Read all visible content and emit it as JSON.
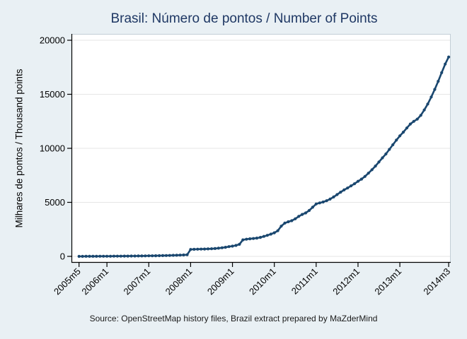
{
  "figure": {
    "title": "Brasil: Número de pontos / Number of Points",
    "caption": "Source: OpenStreetMap history files, Brazil extract prepared by MaZderMind"
  },
  "style": {
    "background": "#e9f0f4",
    "plot_background": "#ffffff",
    "grid_color": "#e6e6e6",
    "axis_color": "#000000",
    "frame_color": "#c3ced6",
    "line_color": "#1a476f",
    "title_color": "#1f3864",
    "text_color": "#000000"
  },
  "chart_data": {
    "type": "line",
    "title": "Brasil: Número de pontos / Number of Points",
    "xlabel": "",
    "ylabel": "Milhares de pontos / Thousand points",
    "x_start": "2005m5",
    "x_end": "2014m3",
    "x_interval": "monthly",
    "ylim": [
      0,
      20000
    ],
    "yticks": [
      0,
      5000,
      10000,
      15000,
      20000
    ],
    "xticks": [
      {
        "label": "2005m5",
        "month_index": 0
      },
      {
        "label": "2006m1",
        "month_index": 8
      },
      {
        "label": "2007m1",
        "month_index": 20
      },
      {
        "label": "2008m1",
        "month_index": 32
      },
      {
        "label": "2009m1",
        "month_index": 44
      },
      {
        "label": "2010m1",
        "month_index": 56
      },
      {
        "label": "2011m1",
        "month_index": 68
      },
      {
        "label": "2012m1",
        "month_index": 80
      },
      {
        "label": "2013m1",
        "month_index": 92
      },
      {
        "label": "2014m3",
        "month_index": 106
      }
    ],
    "grid": "horizontal",
    "legend_position": "none",
    "series": [
      {
        "name": "Milhares de pontos / Thousand points",
        "color": "#1a476f",
        "values": [
          2,
          3,
          4,
          5,
          7,
          8,
          10,
          12,
          14,
          16,
          18,
          20,
          22,
          25,
          28,
          31,
          34,
          38,
          42,
          46,
          50,
          55,
          60,
          66,
          72,
          79,
          87,
          95,
          104,
          115,
          130,
          150,
          640,
          655,
          665,
          672,
          680,
          690,
          705,
          725,
          755,
          795,
          845,
          900,
          950,
          1010,
          1120,
          1530,
          1590,
          1625,
          1655,
          1690,
          1760,
          1850,
          1950,
          2060,
          2180,
          2370,
          2800,
          3080,
          3200,
          3300,
          3480,
          3700,
          3880,
          4020,
          4250,
          4550,
          4850,
          4950,
          5030,
          5150,
          5300,
          5500,
          5720,
          5940,
          6150,
          6330,
          6520,
          6720,
          6950,
          7150,
          7400,
          7700,
          8020,
          8360,
          8730,
          9120,
          9480,
          9900,
          10330,
          10760,
          11150,
          11500,
          11880,
          12250,
          12500,
          12700,
          13050,
          13550,
          14100,
          14750,
          15450,
          16200,
          17000,
          17800,
          18450
        ]
      }
    ]
  }
}
